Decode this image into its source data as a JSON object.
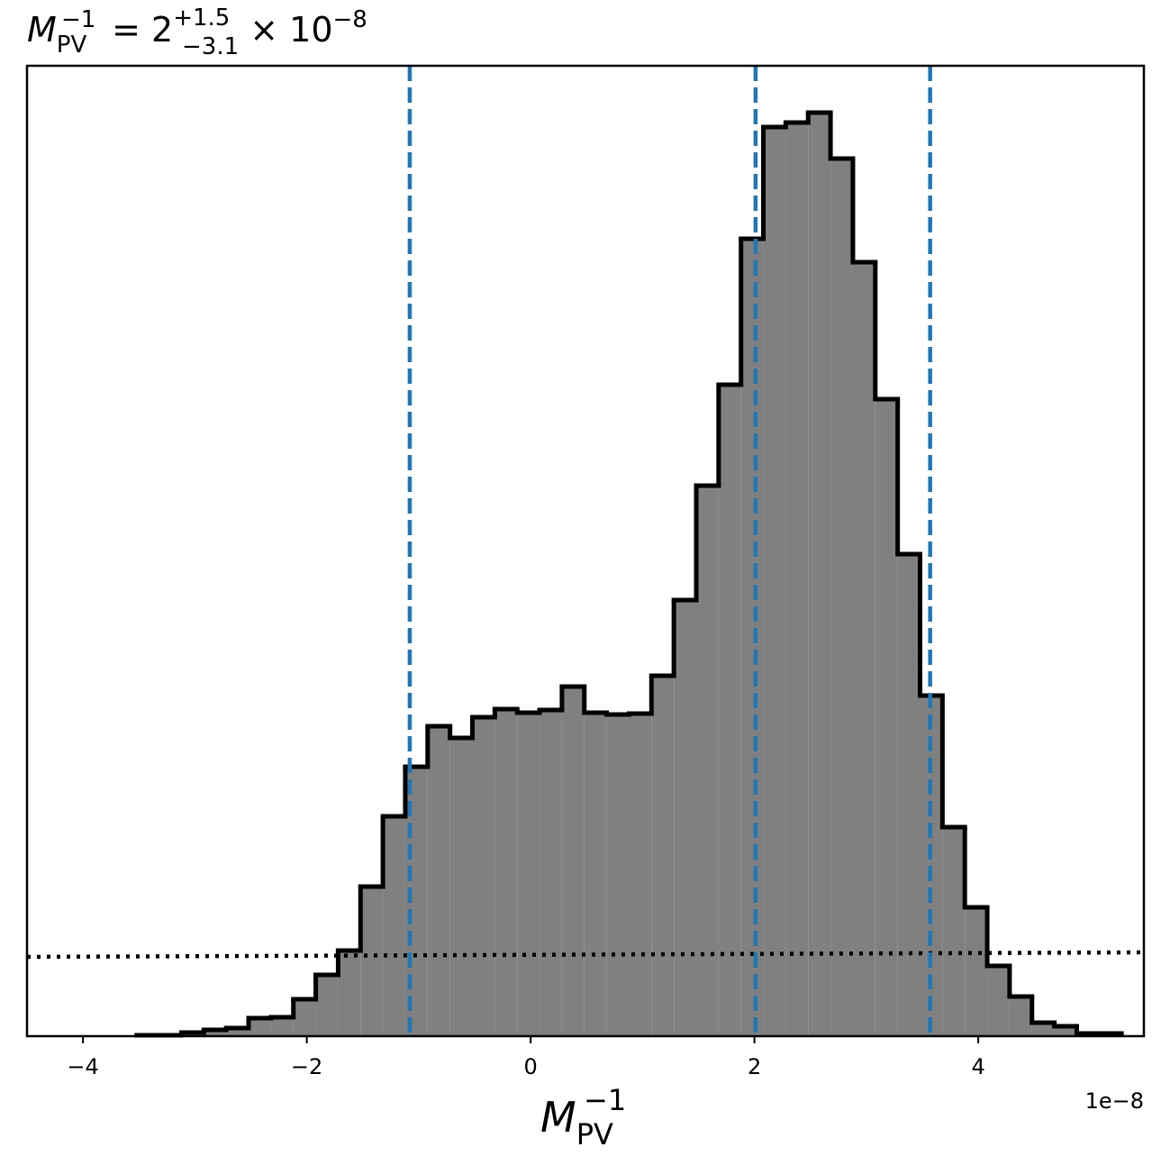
{
  "chart_data": {
    "type": "histogram",
    "title": {
      "symbol": "M",
      "sub": "PV",
      "sup": "−1",
      "eq": " = 2",
      "upper": "+1.5",
      "lower": "−3.1",
      "times": " × 10",
      "exp": "−8"
    },
    "xlabel": {
      "symbol": "M",
      "sub": "PV",
      "sup": "−1"
    },
    "x_offset_label": "1e−8",
    "bins": [
      -3.52,
      -3.32,
      -3.12,
      -2.92,
      -2.72,
      -2.52,
      -2.32,
      -2.12,
      -1.92,
      -1.72,
      -1.52,
      -1.32,
      -1.12,
      -0.92,
      -0.72,
      -0.52,
      -0.32,
      -0.12,
      0.08,
      0.28,
      0.48,
      0.68,
      0.88,
      1.08,
      1.28,
      1.48,
      1.68,
      1.88,
      2.08,
      2.28,
      2.48,
      2.68,
      2.88,
      3.08,
      3.28,
      3.48,
      3.68,
      3.88,
      4.08,
      4.28,
      4.48,
      4.68,
      4.88,
      5.08,
      5.28
    ],
    "counts": [
      1,
      1,
      4,
      7,
      9,
      20,
      21,
      41,
      68,
      95,
      166,
      244,
      299,
      344,
      331,
      354,
      363,
      359,
      362,
      388,
      359,
      357,
      358,
      400,
      484,
      611,
      723,
      885,
      1009,
      1014,
      1025,
      974,
      859,
      707,
      535,
      378,
      232,
      143,
      78,
      44,
      15,
      11,
      3,
      3
    ],
    "color": "#808080",
    "edgecolor": "#000000",
    "quantiles": [
      -1.08,
      2.01,
      3.57
    ],
    "quantile_color": "#1f77b4",
    "prior": {
      "x": [
        -4.5,
        5.48
      ],
      "values": [
        88,
        93
      ]
    },
    "xlim": [
      -4.5,
      5.48
    ],
    "ylim": [
      0,
      1077
    ],
    "xticks": [
      {
        "value": -4,
        "label": "−4"
      },
      {
        "value": -2,
        "label": "−2"
      },
      0,
      2,
      4
    ]
  }
}
